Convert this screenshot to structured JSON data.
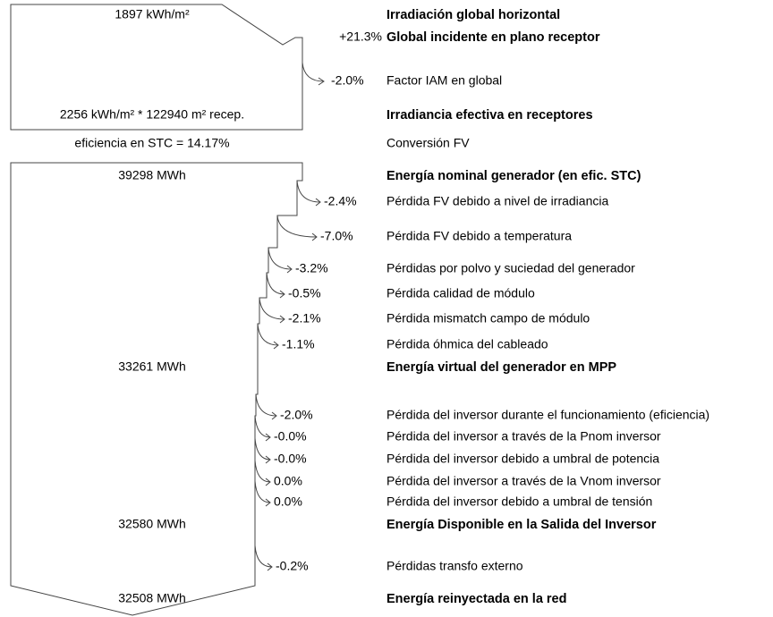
{
  "rows": [
    {
      "value": "1897 kWh/m²",
      "label": "Irradiación global horizontal"
    },
    {
      "change": "+21.3%",
      "label": "Global incidente en plano receptor"
    },
    {
      "change": "-2.0%",
      "label": "Factor IAM en global"
    },
    {
      "value": "2256 kWh/m² * 122940 m² recep.",
      "label": "Irradiancia efectiva en receptores"
    },
    {
      "value": "eficiencia en STC = 14.17%",
      "label": "Conversión FV"
    },
    {
      "value": "39298 MWh",
      "label": "Energía nominal generador (en efic. STC)"
    },
    {
      "change": "-2.4%",
      "label": "Pérdida FV debido a nivel de irradiancia"
    },
    {
      "change": "-7.0%",
      "label": "Pérdida FV debido a temperatura"
    },
    {
      "change": "-3.2%",
      "label": "Pérdidas por polvo y suciedad del generador"
    },
    {
      "change": "-0.5%",
      "label": "Pérdida calidad de módulo"
    },
    {
      "change": "-2.1%",
      "label": "Pérdida mismatch campo de módulo"
    },
    {
      "change": "-1.1%",
      "label": "Pérdida óhmica del cableado"
    },
    {
      "value": "33261 MWh",
      "label": "Energía virtual del generador en MPP"
    },
    {
      "change": "-2.0%",
      "label": "Pérdida del inversor durante el funcionamiento (eficiencia)"
    },
    {
      "change": "-0.0%",
      "label": "Pérdida del inversor a través de la Pnom inversor"
    },
    {
      "change": "-0.0%",
      "label": "Pérdida del inversor debido a umbral de potencia"
    },
    {
      "change": "0.0%",
      "label": "Pérdida del inversor a través de la Vnom inversor"
    },
    {
      "change": "0.0%",
      "label": "Pérdida del inversor debido a umbral de tensión"
    },
    {
      "value": "32580 MWh",
      "label": "Energía Disponible en la Salida del Inversor"
    },
    {
      "change": "-0.2%",
      "label": "Pérdidas transfo externo"
    },
    {
      "value": "32508 MWh",
      "label": "Energía reinyectada en la red"
    }
  ]
}
